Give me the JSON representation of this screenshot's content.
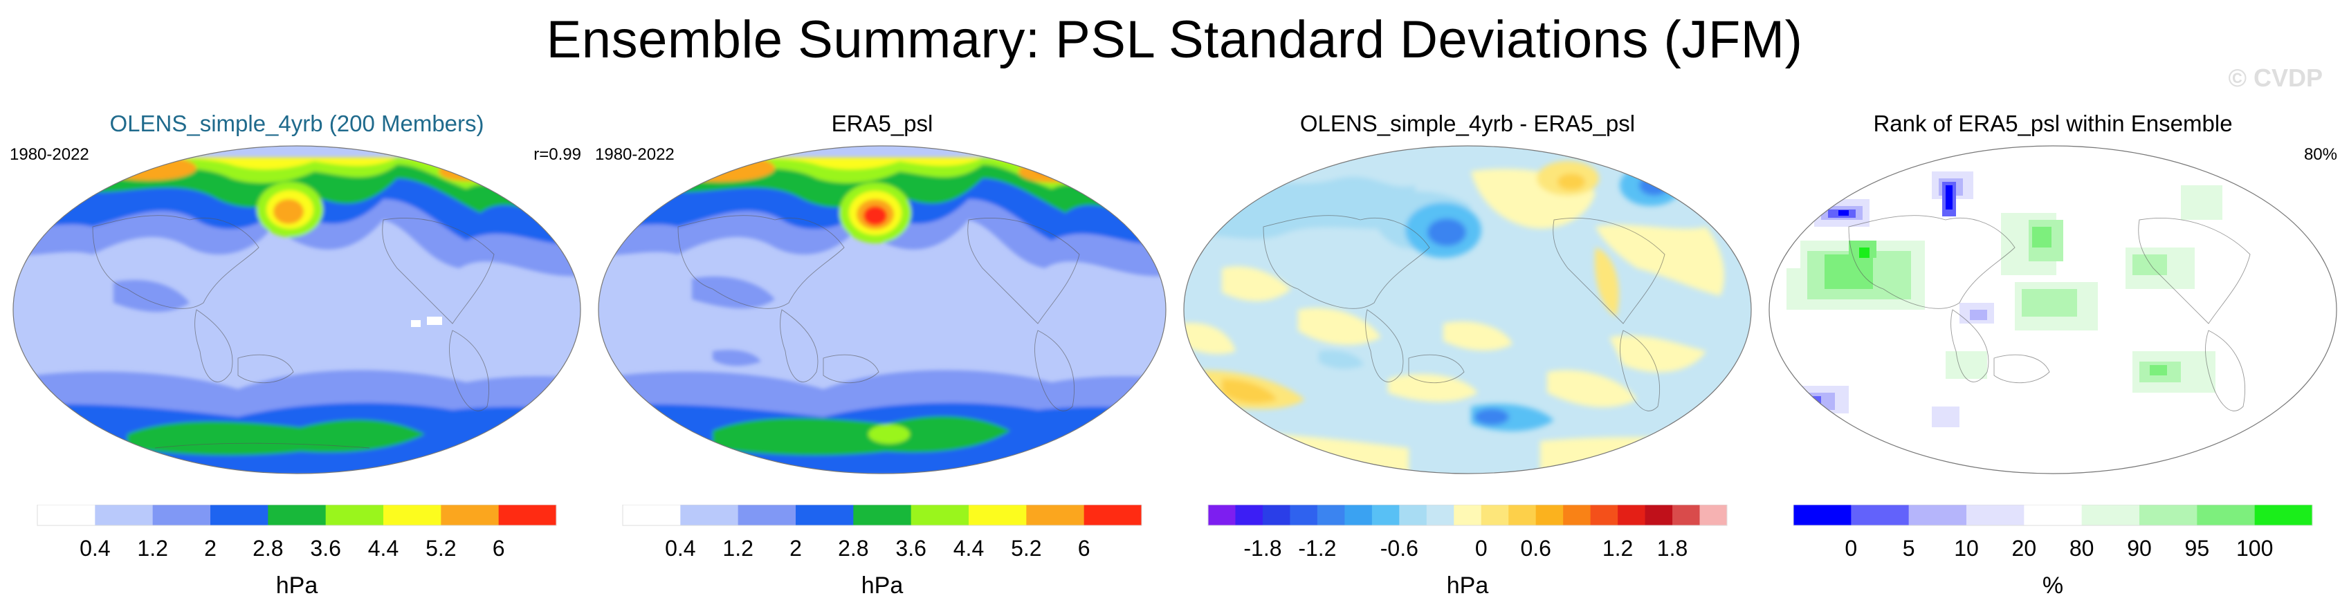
{
  "title": "Ensemble Summary: PSL Standard Deviations (JFM)",
  "watermark": "© CVDP",
  "panels": [
    {
      "title": "OLENS_simple_4yrb (200 Members)",
      "title_color": "#1f6a8c",
      "left_label": "1980-2022",
      "right_label": "r=0.99",
      "unit": "hPa",
      "colorbar": {
        "colors": [
          "#ffffff",
          "#b9c9fb",
          "#8098f5",
          "#1e64f0",
          "#18b83a",
          "#9af51c",
          "#fcfc1e",
          "#fba61e",
          "#ff2b12"
        ],
        "tick_labels": [
          "0.4",
          "1.2",
          "2",
          "2.8",
          "3.6",
          "4.4",
          "5.2",
          "6"
        ]
      }
    },
    {
      "title": "ERA5_psl",
      "title_color": "#000000",
      "left_label": "1980-2022",
      "right_label": "",
      "unit": "hPa",
      "colorbar": {
        "colors": [
          "#ffffff",
          "#b9c9fb",
          "#8098f5",
          "#1e64f0",
          "#18b83a",
          "#9af51c",
          "#fcfc1e",
          "#fba61e",
          "#ff2b12"
        ],
        "tick_labels": [
          "0.4",
          "1.2",
          "2",
          "2.8",
          "3.6",
          "4.4",
          "5.2",
          "6"
        ]
      }
    },
    {
      "title": "OLENS_simple_4yrb - ERA5_psl",
      "title_color": "#000000",
      "left_label": "",
      "right_label": "",
      "unit": "hPa",
      "colorbar": {
        "colors": [
          "#7d1ef0",
          "#3c1ef5",
          "#2a3ee8",
          "#2f62ef",
          "#3b84f0",
          "#3aa2f2",
          "#58c0f5",
          "#a8dcf3",
          "#c6e6f4",
          "#fff9b4",
          "#fde67a",
          "#fdd04a",
          "#fbb21e",
          "#f98216",
          "#f4501a",
          "#e41f16",
          "#c0101a",
          "#d94b4b",
          "#f6b2b2"
        ],
        "tick_labels": [
          "-1.8",
          "-1.2",
          "-0.6",
          "0",
          "0.6",
          "1.2",
          "1.8"
        ]
      }
    },
    {
      "title": "Rank of ERA5_psl within Ensemble",
      "title_color": "#000000",
      "left_label": "",
      "right_label": "80%",
      "unit": "%",
      "colorbar": {
        "colors": [
          "#0000ff",
          "#6262fb",
          "#b5b5fb",
          "#e2e2fd",
          "#ffffff",
          "#e1fae1",
          "#b3f5b3",
          "#7def7d",
          "#1aee1a"
        ],
        "tick_labels": [
          "0",
          "5",
          "10",
          "20",
          "80",
          "90",
          "95",
          "100"
        ]
      }
    }
  ]
}
